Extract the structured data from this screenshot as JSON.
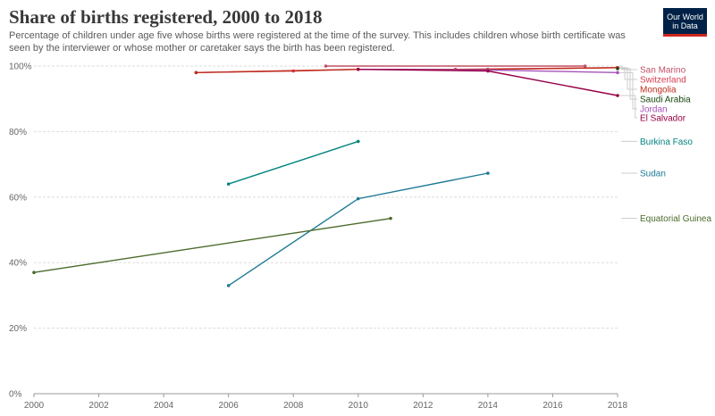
{
  "header": {
    "title": "Share of births registered, 2000 to 2018",
    "subtitle": "Percentage of children under age five whose births were registered at the time of the survey. This includes children whose birth certificate was seen by the interviewer or whose mother or caretaker says the birth has been registered."
  },
  "logo": {
    "line1": "Our World",
    "line2": "in Data"
  },
  "chart_data": {
    "type": "line",
    "title": "Share of births registered, 2000 to 2018",
    "xlabel": "",
    "ylabel": "",
    "xlim": [
      2000,
      2018
    ],
    "ylim": [
      0,
      100
    ],
    "x_ticks": [
      2000,
      2002,
      2004,
      2006,
      2008,
      2010,
      2012,
      2014,
      2016,
      2018
    ],
    "y_ticks": [
      0,
      20,
      40,
      60,
      80,
      100
    ],
    "y_tick_labels": [
      "0%",
      "20%",
      "40%",
      "60%",
      "80%",
      "100%"
    ],
    "grid": "horizontal dashed",
    "legend": "right, end-of-line labels",
    "series": [
      {
        "name": "San Marino",
        "color": "#c15065",
        "points": [
          [
            2009,
            100
          ],
          [
            2017,
            100
          ]
        ]
      },
      {
        "name": "Switzerland",
        "color": "#d73c50",
        "points": [
          [
            2005,
            98
          ],
          [
            2008,
            98.5
          ],
          [
            2010,
            99
          ],
          [
            2013,
            99
          ],
          [
            2018,
            99.5
          ]
        ]
      },
      {
        "name": "Mongolia",
        "color": "#be2d1c",
        "points": [
          [
            2005,
            98
          ],
          [
            2010,
            99
          ],
          [
            2014,
            99
          ],
          [
            2018,
            99.5
          ]
        ]
      },
      {
        "name": "Saudi Arabia",
        "color": "#18470f",
        "points": [
          [
            2018,
            99.2
          ]
        ]
      },
      {
        "name": "Jordan",
        "color": "#a652ba",
        "points": [
          [
            2010,
            99
          ],
          [
            2014,
            98.8
          ],
          [
            2018,
            98
          ]
        ]
      },
      {
        "name": "El Salvador",
        "color": "#970046",
        "points": [
          [
            2010,
            99
          ],
          [
            2014,
            98.5
          ],
          [
            2018,
            91
          ]
        ]
      },
      {
        "name": "Burkina Faso",
        "color": "#00847e",
        "points": [
          [
            2006,
            64
          ],
          [
            2010,
            77
          ]
        ]
      },
      {
        "name": "Sudan",
        "color": "#1d7a93",
        "points": [
          [
            2006,
            33
          ],
          [
            2010,
            59.5
          ],
          [
            2014,
            67.3
          ]
        ]
      },
      {
        "name": "Equatorial Guinea",
        "color": "#4c6a2b",
        "points": [
          [
            2000,
            37
          ],
          [
            2011,
            53.5
          ]
        ]
      }
    ]
  }
}
